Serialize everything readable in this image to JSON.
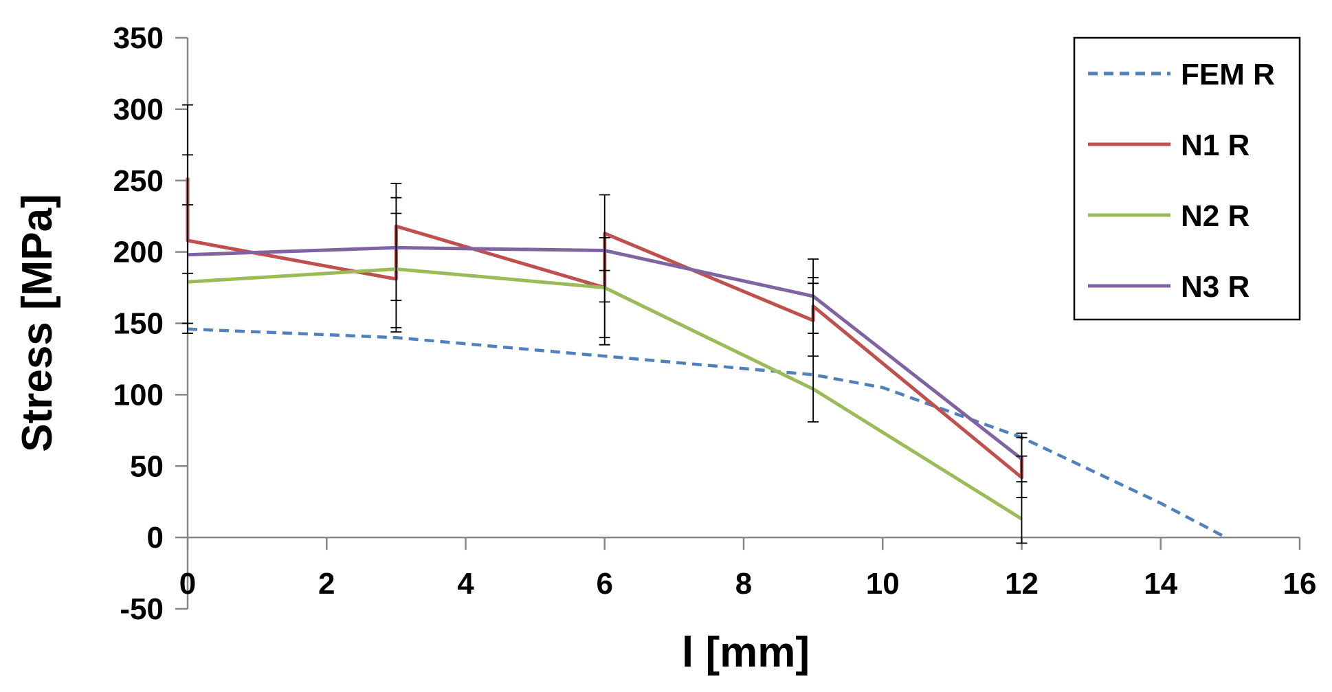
{
  "chart_data": {
    "type": "line",
    "title": "",
    "xlabel": "l [mm]",
    "ylabel": "Stress [MPa]",
    "xlim": [
      0,
      16
    ],
    "ylim": [
      -50,
      350
    ],
    "xticks": [
      0,
      2,
      4,
      6,
      8,
      10,
      12,
      14,
      16
    ],
    "yticks": [
      -50,
      0,
      50,
      100,
      150,
      200,
      250,
      300,
      350
    ],
    "grid": false,
    "legend_position": "top-right",
    "series": [
      {
        "name": "FEM R",
        "color": "#4f81bd",
        "style": "dashed",
        "x": [
          0,
          3,
          6,
          9,
          10,
          12,
          13,
          14,
          14.9
        ],
        "y": [
          146,
          140,
          127,
          114,
          105,
          70,
          47,
          24,
          1
        ]
      },
      {
        "name": "N1 R",
        "color": "#c0504d",
        "style": "solid",
        "x": [
          0,
          0,
          3,
          3,
          6,
          6,
          9,
          9,
          12,
          12
        ],
        "y": [
          252,
          208,
          181,
          218,
          175,
          213,
          152,
          162,
          42,
          57
        ]
      },
      {
        "name": "N2 R",
        "color": "#9bbb59",
        "style": "solid",
        "x": [
          0,
          3,
          6,
          9,
          12
        ],
        "y": [
          179,
          188,
          175,
          104,
          13
        ]
      },
      {
        "name": "N3 R",
        "color": "#8064a2",
        "style": "solid",
        "x": [
          0,
          3,
          6,
          9,
          12
        ],
        "y": [
          198,
          203,
          201,
          169,
          55
        ]
      }
    ],
    "error_bars": [
      {
        "x": 0,
        "low": 143,
        "high": 303
      },
      {
        "x": 0,
        "low": 150,
        "high": 268
      },
      {
        "x": 0,
        "low": 185,
        "high": 233
      },
      {
        "x": 3,
        "low": 144,
        "high": 248
      },
      {
        "x": 3,
        "low": 147,
        "high": 227
      },
      {
        "x": 3,
        "low": 166,
        "high": 238
      },
      {
        "x": 6,
        "low": 135,
        "high": 240
      },
      {
        "x": 6,
        "low": 140,
        "high": 210
      },
      {
        "x": 6,
        "low": 165,
        "high": 187
      },
      {
        "x": 9,
        "low": 81,
        "high": 195
      },
      {
        "x": 9,
        "low": 127,
        "high": 182
      },
      {
        "x": 9,
        "low": 143,
        "high": 178
      },
      {
        "x": 12,
        "low": -4,
        "high": 73
      },
      {
        "x": 12,
        "low": 28,
        "high": 70
      },
      {
        "x": 12,
        "low": 39,
        "high": 57
      }
    ]
  }
}
